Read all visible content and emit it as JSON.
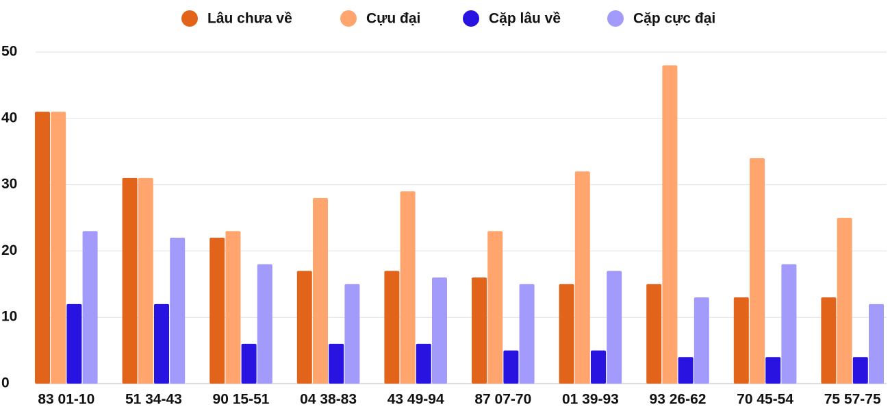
{
  "chart_data": {
    "type": "bar",
    "categories": [
      "83 01-10",
      "51 34-43",
      "90 15-51",
      "04 38-83",
      "43 49-94",
      "87 07-70",
      "01 39-93",
      "93 26-62",
      "70 45-54",
      "75 57-75"
    ],
    "series": [
      {
        "name": "Lâu chưa về",
        "color": "#e2631a",
        "values": [
          41,
          31,
          22,
          17,
          17,
          16,
          15,
          15,
          13,
          13
        ]
      },
      {
        "name": "Cựu đại",
        "color": "#ffa56d",
        "values": [
          41,
          31,
          23,
          28,
          29,
          23,
          32,
          48,
          34,
          25
        ]
      },
      {
        "name": "Cặp lâu về",
        "color": "#2813e0",
        "values": [
          12,
          12,
          6,
          6,
          6,
          5,
          5,
          4,
          4,
          4
        ]
      },
      {
        "name": "Cặp cực đại",
        "color": "#a29bfc",
        "values": [
          23,
          22,
          18,
          15,
          16,
          15,
          17,
          13,
          18,
          12
        ]
      }
    ],
    "ylim": [
      0,
      50
    ],
    "yticks": [
      0,
      10,
      20,
      30,
      40,
      50
    ],
    "grid": true,
    "legend": "top"
  }
}
